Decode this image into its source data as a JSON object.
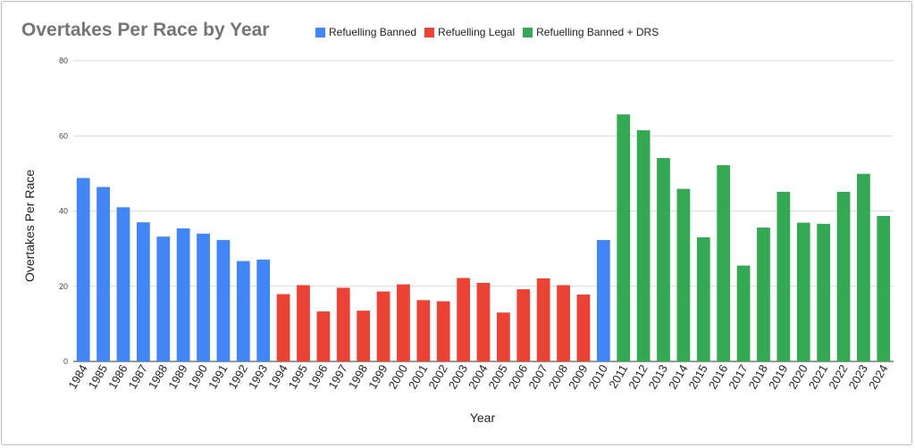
{
  "chart_data": {
    "type": "bar",
    "title": "Overtakes Per Race by Year",
    "xlabel": "Year",
    "ylabel": "Overtakes Per Race",
    "ylim": [
      0,
      80
    ],
    "yticks": [
      "0",
      "20",
      "40",
      "60",
      "80"
    ],
    "grid": true,
    "legend_position": "top",
    "legend": [
      {
        "name": "Refuelling Banned",
        "color": "#4285f4"
      },
      {
        "name": "Refuelling Legal",
        "color": "#ea4335"
      },
      {
        "name": "Refuelling Banned + DRS",
        "color": "#34a853"
      }
    ],
    "categories": [
      "1984",
      "1985",
      "1986",
      "1987",
      "1988",
      "1989",
      "1990",
      "1991",
      "1992",
      "1993",
      "1994",
      "1995",
      "1996",
      "1997",
      "1998",
      "1999",
      "2000",
      "2001",
      "2002",
      "2003",
      "2004",
      "2005",
      "2006",
      "2007",
      "2008",
      "2009",
      "2010",
      "2011",
      "2012",
      "2013",
      "2014",
      "2015",
      "2016",
      "2017",
      "2018",
      "2019",
      "2020",
      "2021",
      "2022",
      "2023",
      "2024"
    ],
    "values": [
      48.8,
      46.4,
      41.0,
      37.0,
      33.2,
      35.4,
      34.0,
      32.3,
      26.7,
      27.1,
      17.9,
      20.3,
      13.3,
      19.6,
      13.5,
      18.6,
      20.5,
      16.3,
      16.0,
      22.2,
      20.9,
      13.0,
      19.2,
      22.1,
      20.3,
      17.8,
      32.3,
      65.7,
      61.5,
      54.1,
      45.9,
      33.0,
      52.2,
      25.5,
      35.6,
      45.1,
      36.9,
      36.6,
      45.1,
      49.9,
      38.7
    ],
    "series_index": [
      0,
      0,
      0,
      0,
      0,
      0,
      0,
      0,
      0,
      0,
      1,
      1,
      1,
      1,
      1,
      1,
      1,
      1,
      1,
      1,
      1,
      1,
      1,
      1,
      1,
      1,
      0,
      2,
      2,
      2,
      2,
      2,
      2,
      2,
      2,
      2,
      2,
      2,
      2,
      2,
      2
    ]
  }
}
